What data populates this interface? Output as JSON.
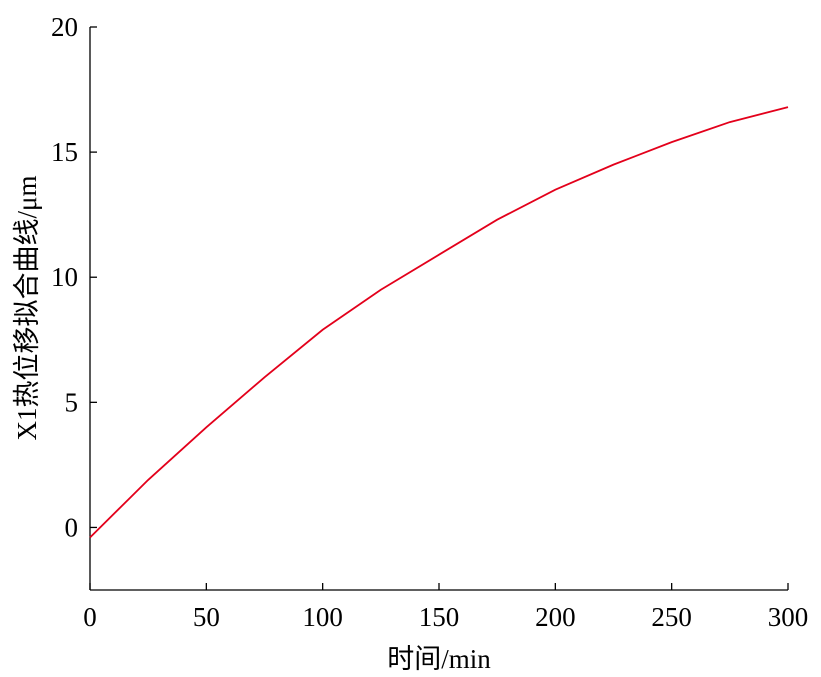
{
  "chart_data": {
    "type": "line",
    "x_label": "时间/min",
    "y_label": "X1热位移拟合曲线/μm",
    "x": [
      0,
      25,
      50,
      75,
      100,
      125,
      150,
      175,
      200,
      225,
      250,
      275,
      300
    ],
    "series": [
      {
        "color": "#e3001b",
        "values": [
          -0.4,
          1.9,
          4.0,
          6.0,
          7.9,
          9.5,
          10.9,
          12.3,
          13.5,
          14.5,
          15.4,
          16.2,
          16.8
        ]
      }
    ],
    "xlim": [
      0,
      300
    ],
    "xticks": [
      0,
      50,
      100,
      150,
      200,
      250,
      300
    ],
    "ylim": [
      -2.5,
      20
    ],
    "yticks": [
      0,
      5,
      10,
      15,
      20
    ]
  }
}
